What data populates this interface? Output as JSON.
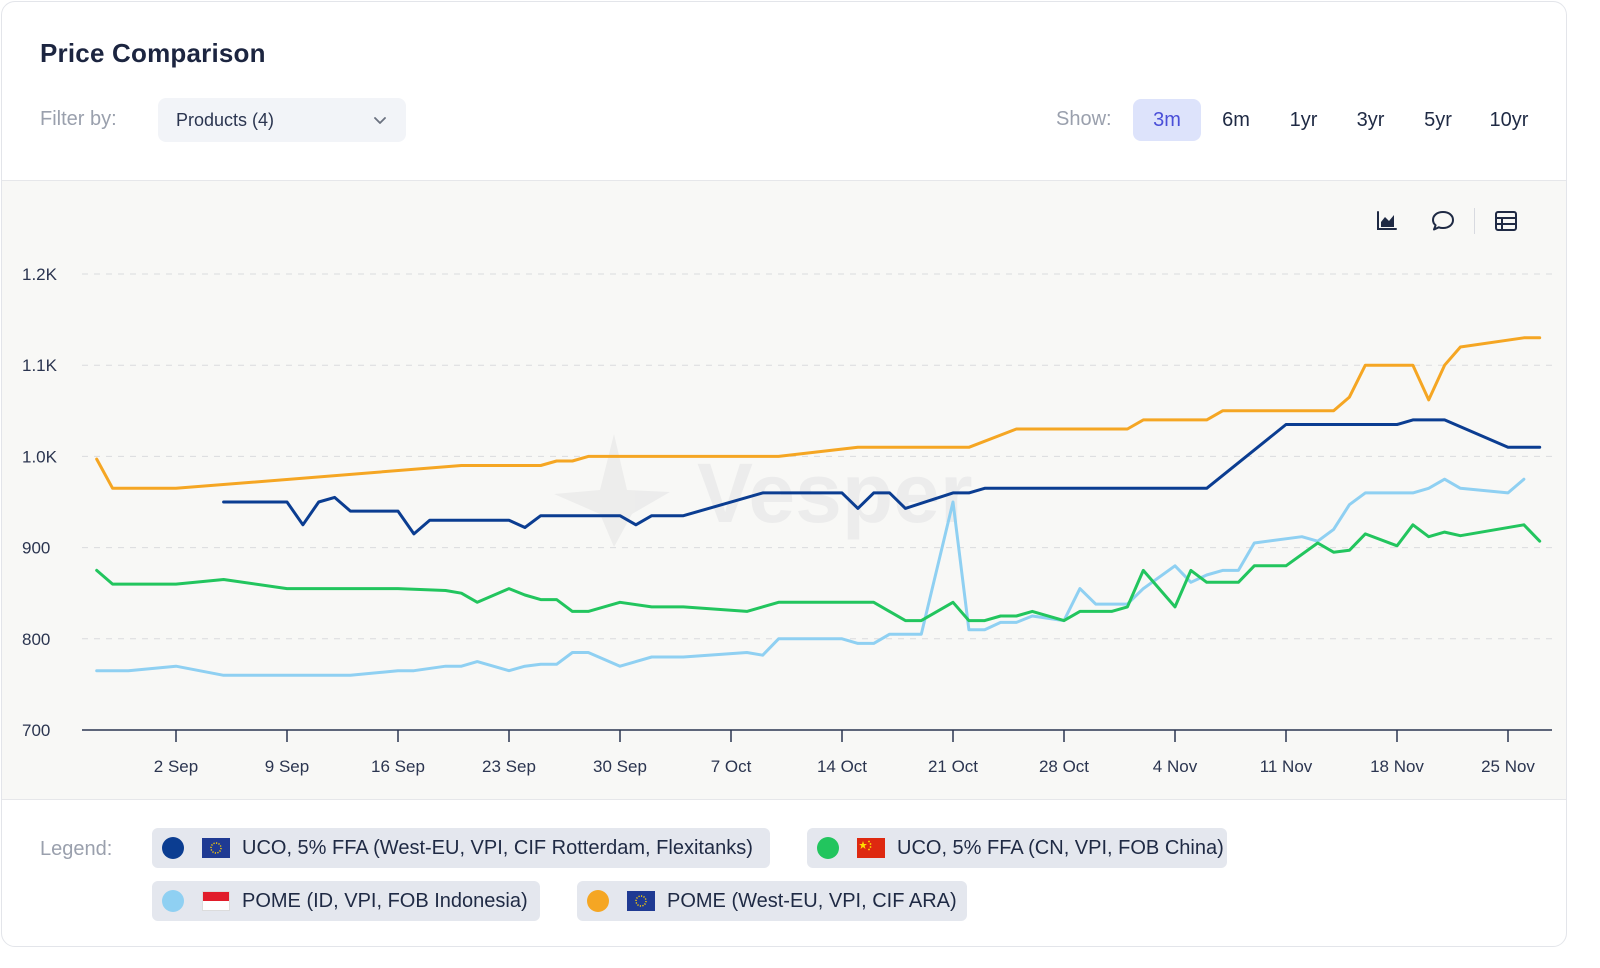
{
  "header": {
    "title": "Price Comparison"
  },
  "filter": {
    "label": "Filter by:",
    "value": "Products (4)"
  },
  "show": {
    "label": "Show:",
    "ranges": [
      "3m",
      "6m",
      "1yr",
      "3yr",
      "5yr",
      "10yr"
    ],
    "active": "3m",
    "active_bg": "#dde3fb",
    "active_color": "#4a4fd8"
  },
  "toolbar": {
    "icons": [
      "chart-icon",
      "comment-icon",
      "table-icon"
    ]
  },
  "watermark": "Vesper",
  "legend": {
    "label": "Legend:",
    "items": [
      {
        "name": "UCO, 5% FFA (West-EU, VPI, CIF Rotterdam, Flexitanks)",
        "color": "#0b3d91",
        "flag": "eu-flag"
      },
      {
        "name": "UCO, 5% FFA (CN, VPI, FOB China)",
        "color": "#22c55e",
        "flag": "china-flag"
      },
      {
        "name": "POME (ID, VPI, FOB Indonesia)",
        "color": "#8fd0f2",
        "flag": "indonesia-flag"
      },
      {
        "name": "POME (West-EU, VPI, CIF ARA)",
        "color": "#f5a623",
        "flag": "eu-flag"
      }
    ]
  },
  "chart_data": {
    "type": "line",
    "x_start": "2024-08-28",
    "x_end": "2024-11-26",
    "x_ticks": [
      {
        "date": "2024-09-02",
        "label": "2 Sep"
      },
      {
        "date": "2024-09-09",
        "label": "9 Sep"
      },
      {
        "date": "2024-09-16",
        "label": "16 Sep"
      },
      {
        "date": "2024-09-23",
        "label": "23 Sep"
      },
      {
        "date": "2024-09-30",
        "label": "30 Sep"
      },
      {
        "date": "2024-10-07",
        "label": "7 Oct"
      },
      {
        "date": "2024-10-14",
        "label": "14 Oct"
      },
      {
        "date": "2024-10-21",
        "label": "21 Oct"
      },
      {
        "date": "2024-10-28",
        "label": "28 Oct"
      },
      {
        "date": "2024-11-04",
        "label": "4 Nov"
      },
      {
        "date": "2024-11-11",
        "label": "11 Nov"
      },
      {
        "date": "2024-11-18",
        "label": "18 Nov"
      },
      {
        "date": "2024-11-25",
        "label": "25 Nov"
      }
    ],
    "ylim": [
      700,
      1200
    ],
    "y_ticks": [
      700,
      800,
      900,
      1000,
      1100,
      1200
    ],
    "y_tick_labels": [
      "700",
      "800",
      "900",
      "1.0K",
      "1.1K",
      "1.2K"
    ],
    "grid": true,
    "series": [
      {
        "name": "UCO, 5% FFA (West-EU, VPI, CIF Rotterdam, Flexitanks)",
        "color": "#0b3d91",
        "points": [
          [
            "2024-09-05",
            950
          ],
          [
            "2024-09-06",
            950
          ],
          [
            "2024-09-09",
            950
          ],
          [
            "2024-09-10",
            925
          ],
          [
            "2024-09-11",
            950
          ],
          [
            "2024-09-12",
            955
          ],
          [
            "2024-09-13",
            940
          ],
          [
            "2024-09-16",
            940
          ],
          [
            "2024-09-17",
            915
          ],
          [
            "2024-09-18",
            930
          ],
          [
            "2024-09-23",
            930
          ],
          [
            "2024-09-24",
            922
          ],
          [
            "2024-09-25",
            935
          ],
          [
            "2024-09-30",
            935
          ],
          [
            "2024-10-01",
            925
          ],
          [
            "2024-10-02",
            935
          ],
          [
            "2024-10-04",
            935
          ],
          [
            "2024-10-09",
            960
          ],
          [
            "2024-10-14",
            960
          ],
          [
            "2024-10-15",
            943
          ],
          [
            "2024-10-16",
            960
          ],
          [
            "2024-10-17",
            960
          ],
          [
            "2024-10-18",
            943
          ],
          [
            "2024-10-21",
            960
          ],
          [
            "2024-10-22",
            960
          ],
          [
            "2024-10-23",
            965
          ],
          [
            "2024-11-06",
            965
          ],
          [
            "2024-11-11",
            1035
          ],
          [
            "2024-11-18",
            1035
          ],
          [
            "2024-11-19",
            1040
          ],
          [
            "2024-11-21",
            1040
          ],
          [
            "2024-11-25",
            1010
          ],
          [
            "2024-11-27",
            1010
          ]
        ]
      },
      {
        "name": "UCO, 5% FFA (CN, VPI, FOB China)",
        "color": "#22c55e",
        "points": [
          [
            "2024-08-28",
            875
          ],
          [
            "2024-08-29",
            860
          ],
          [
            "2024-09-02",
            860
          ],
          [
            "2024-09-05",
            865
          ],
          [
            "2024-09-09",
            855
          ],
          [
            "2024-09-16",
            855
          ],
          [
            "2024-09-19",
            853
          ],
          [
            "2024-09-20",
            850
          ],
          [
            "2024-09-21",
            840
          ],
          [
            "2024-09-23",
            855
          ],
          [
            "2024-09-24",
            848
          ],
          [
            "2024-09-25",
            843
          ],
          [
            "2024-09-26",
            843
          ],
          [
            "2024-09-27",
            830
          ],
          [
            "2024-09-28",
            830
          ],
          [
            "2024-09-30",
            840
          ],
          [
            "2024-10-02",
            835
          ],
          [
            "2024-10-04",
            835
          ],
          [
            "2024-10-08",
            830
          ],
          [
            "2024-10-10",
            840
          ],
          [
            "2024-10-16",
            840
          ],
          [
            "2024-10-18",
            820
          ],
          [
            "2024-10-19",
            820
          ],
          [
            "2024-10-21",
            840
          ],
          [
            "2024-10-22",
            820
          ],
          [
            "2024-10-23",
            820
          ],
          [
            "2024-10-24",
            825
          ],
          [
            "2024-10-25",
            825
          ],
          [
            "2024-10-26",
            830
          ],
          [
            "2024-10-28",
            820
          ],
          [
            "2024-10-29",
            830
          ],
          [
            "2024-10-31",
            830
          ],
          [
            "2024-11-01",
            835
          ],
          [
            "2024-11-02",
            875
          ],
          [
            "2024-11-04",
            835
          ],
          [
            "2024-11-05",
            875
          ],
          [
            "2024-11-06",
            862
          ],
          [
            "2024-11-08",
            862
          ],
          [
            "2024-11-09",
            880
          ],
          [
            "2024-11-11",
            880
          ],
          [
            "2024-11-13",
            905
          ],
          [
            "2024-11-14",
            895
          ],
          [
            "2024-11-15",
            897
          ],
          [
            "2024-11-16",
            915
          ],
          [
            "2024-11-18",
            902
          ],
          [
            "2024-11-19",
            925
          ],
          [
            "2024-11-20",
            912
          ],
          [
            "2024-11-21",
            917
          ],
          [
            "2024-11-22",
            913
          ],
          [
            "2024-11-26",
            925
          ],
          [
            "2024-11-27",
            907
          ]
        ]
      },
      {
        "name": "POME (ID, VPI, FOB Indonesia)",
        "color": "#8fd0f2",
        "points": [
          [
            "2024-08-28",
            765
          ],
          [
            "2024-08-30",
            765
          ],
          [
            "2024-09-02",
            770
          ],
          [
            "2024-09-05",
            760
          ],
          [
            "2024-09-13",
            760
          ],
          [
            "2024-09-16",
            765
          ],
          [
            "2024-09-17",
            765
          ],
          [
            "2024-09-19",
            770
          ],
          [
            "2024-09-20",
            770
          ],
          [
            "2024-09-21",
            775
          ],
          [
            "2024-09-23",
            765
          ],
          [
            "2024-09-24",
            770
          ],
          [
            "2024-09-25",
            772
          ],
          [
            "2024-09-26",
            772
          ],
          [
            "2024-09-27",
            785
          ],
          [
            "2024-09-28",
            785
          ],
          [
            "2024-09-30",
            770
          ],
          [
            "2024-10-02",
            780
          ],
          [
            "2024-10-04",
            780
          ],
          [
            "2024-10-08",
            785
          ],
          [
            "2024-10-09",
            782
          ],
          [
            "2024-10-10",
            800
          ],
          [
            "2024-10-14",
            800
          ],
          [
            "2024-10-15",
            795
          ],
          [
            "2024-10-16",
            795
          ],
          [
            "2024-10-17",
            805
          ],
          [
            "2024-10-19",
            805
          ],
          [
            "2024-10-21",
            950
          ],
          [
            "2024-10-22",
            810
          ],
          [
            "2024-10-23",
            810
          ],
          [
            "2024-10-24",
            818
          ],
          [
            "2024-10-25",
            818
          ],
          [
            "2024-10-26",
            825
          ],
          [
            "2024-10-28",
            820
          ],
          [
            "2024-10-29",
            855
          ],
          [
            "2024-10-30",
            838
          ],
          [
            "2024-11-01",
            838
          ],
          [
            "2024-11-02",
            855
          ],
          [
            "2024-11-04",
            880
          ],
          [
            "2024-11-05",
            862
          ],
          [
            "2024-11-06",
            870
          ],
          [
            "2024-11-07",
            875
          ],
          [
            "2024-11-08",
            875
          ],
          [
            "2024-11-09",
            905
          ],
          [
            "2024-11-12",
            912
          ],
          [
            "2024-11-13",
            907
          ],
          [
            "2024-11-14",
            920
          ],
          [
            "2024-11-15",
            947
          ],
          [
            "2024-11-16",
            960
          ],
          [
            "2024-11-19",
            960
          ],
          [
            "2024-11-20",
            965
          ],
          [
            "2024-11-21",
            975
          ],
          [
            "2024-11-22",
            965
          ],
          [
            "2024-11-25",
            960
          ],
          [
            "2024-11-26",
            975
          ]
        ]
      },
      {
        "name": "POME (West-EU, VPI, CIF ARA)",
        "color": "#f5a623",
        "points": [
          [
            "2024-08-28",
            997
          ],
          [
            "2024-08-29",
            965
          ],
          [
            "2024-09-02",
            965
          ],
          [
            "2024-09-20",
            990
          ],
          [
            "2024-09-25",
            990
          ],
          [
            "2024-09-26",
            995
          ],
          [
            "2024-09-27",
            995
          ],
          [
            "2024-09-28",
            1000
          ],
          [
            "2024-10-10",
            1000
          ],
          [
            "2024-10-15",
            1010
          ],
          [
            "2024-10-22",
            1010
          ],
          [
            "2024-10-25",
            1030
          ],
          [
            "2024-11-01",
            1030
          ],
          [
            "2024-11-02",
            1040
          ],
          [
            "2024-11-06",
            1040
          ],
          [
            "2024-11-07",
            1050
          ],
          [
            "2024-11-14",
            1050
          ],
          [
            "2024-11-15",
            1065
          ],
          [
            "2024-11-16",
            1100
          ],
          [
            "2024-11-19",
            1100
          ],
          [
            "2024-11-20",
            1062
          ],
          [
            "2024-11-21",
            1100
          ],
          [
            "2024-11-22",
            1120
          ],
          [
            "2024-11-26",
            1130
          ],
          [
            "2024-11-27",
            1130
          ]
        ]
      }
    ]
  }
}
